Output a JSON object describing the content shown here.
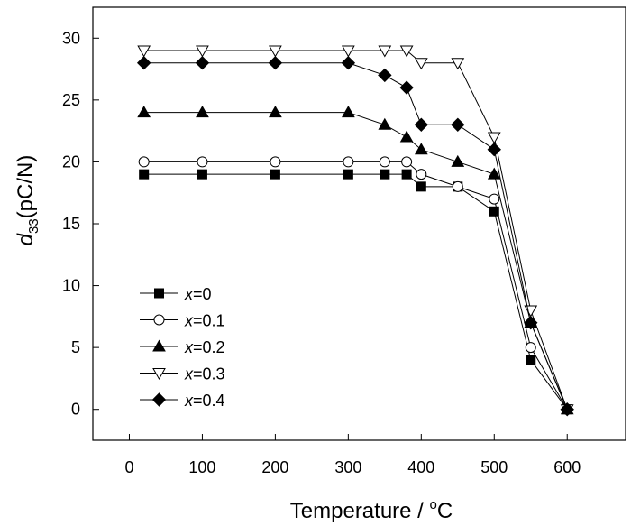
{
  "chart_data": {
    "type": "line",
    "xlabel": "Temperature / °C",
    "xlabel_text": "Temperature / ",
    "xlabel_degree": "o",
    "xlabel_unit": "C",
    "ylabel_sym": "d",
    "ylabel_sub": "33",
    "ylabel_unit": "(pC/N)",
    "xlim": [
      -50,
      680
    ],
    "ylim": [
      -2.5,
      32.5
    ],
    "xticks": [
      0,
      100,
      200,
      300,
      400,
      500,
      600
    ],
    "yticks": [
      0,
      5,
      10,
      15,
      20,
      25,
      30
    ],
    "grid": false,
    "legend_position": "bottom-left",
    "series": [
      {
        "name": "x=0",
        "var": "x",
        "value": "=0",
        "marker": "square",
        "filled": true,
        "x": [
          20,
          100,
          200,
          300,
          350,
          380,
          400,
          450,
          500,
          550,
          600
        ],
        "y": [
          19,
          19,
          19,
          19,
          19,
          19,
          18,
          18,
          16,
          4,
          0
        ]
      },
      {
        "name": "x=0.1",
        "var": "x",
        "value": "=0.1",
        "marker": "circle",
        "filled": false,
        "x": [
          20,
          100,
          200,
          300,
          350,
          380,
          400,
          450,
          500,
          550,
          600
        ],
        "y": [
          20,
          20,
          20,
          20,
          20,
          20,
          19,
          18,
          17,
          5,
          0
        ]
      },
      {
        "name": "x=0.2",
        "var": "x",
        "value": "=0.2",
        "marker": "triangle-up",
        "filled": true,
        "x": [
          20,
          100,
          200,
          300,
          350,
          380,
          400,
          450,
          500,
          550,
          600
        ],
        "y": [
          24,
          24,
          24,
          24,
          23,
          22,
          21,
          20,
          19,
          7,
          0
        ]
      },
      {
        "name": "x=0.3",
        "var": "x",
        "value": "=0.3",
        "marker": "triangle-down",
        "filled": false,
        "x": [
          20,
          100,
          200,
          300,
          350,
          380,
          400,
          450,
          500,
          550,
          600
        ],
        "y": [
          29,
          29,
          29,
          29,
          29,
          29,
          28,
          28,
          22,
          8,
          0
        ]
      },
      {
        "name": "x=0.4",
        "var": "x",
        "value": "=0.4",
        "marker": "diamond",
        "filled": true,
        "x": [
          20,
          100,
          200,
          300,
          350,
          380,
          400,
          450,
          500,
          550,
          600
        ],
        "y": [
          28,
          28,
          28,
          28,
          27,
          26,
          23,
          23,
          21,
          7,
          0
        ]
      }
    ]
  }
}
